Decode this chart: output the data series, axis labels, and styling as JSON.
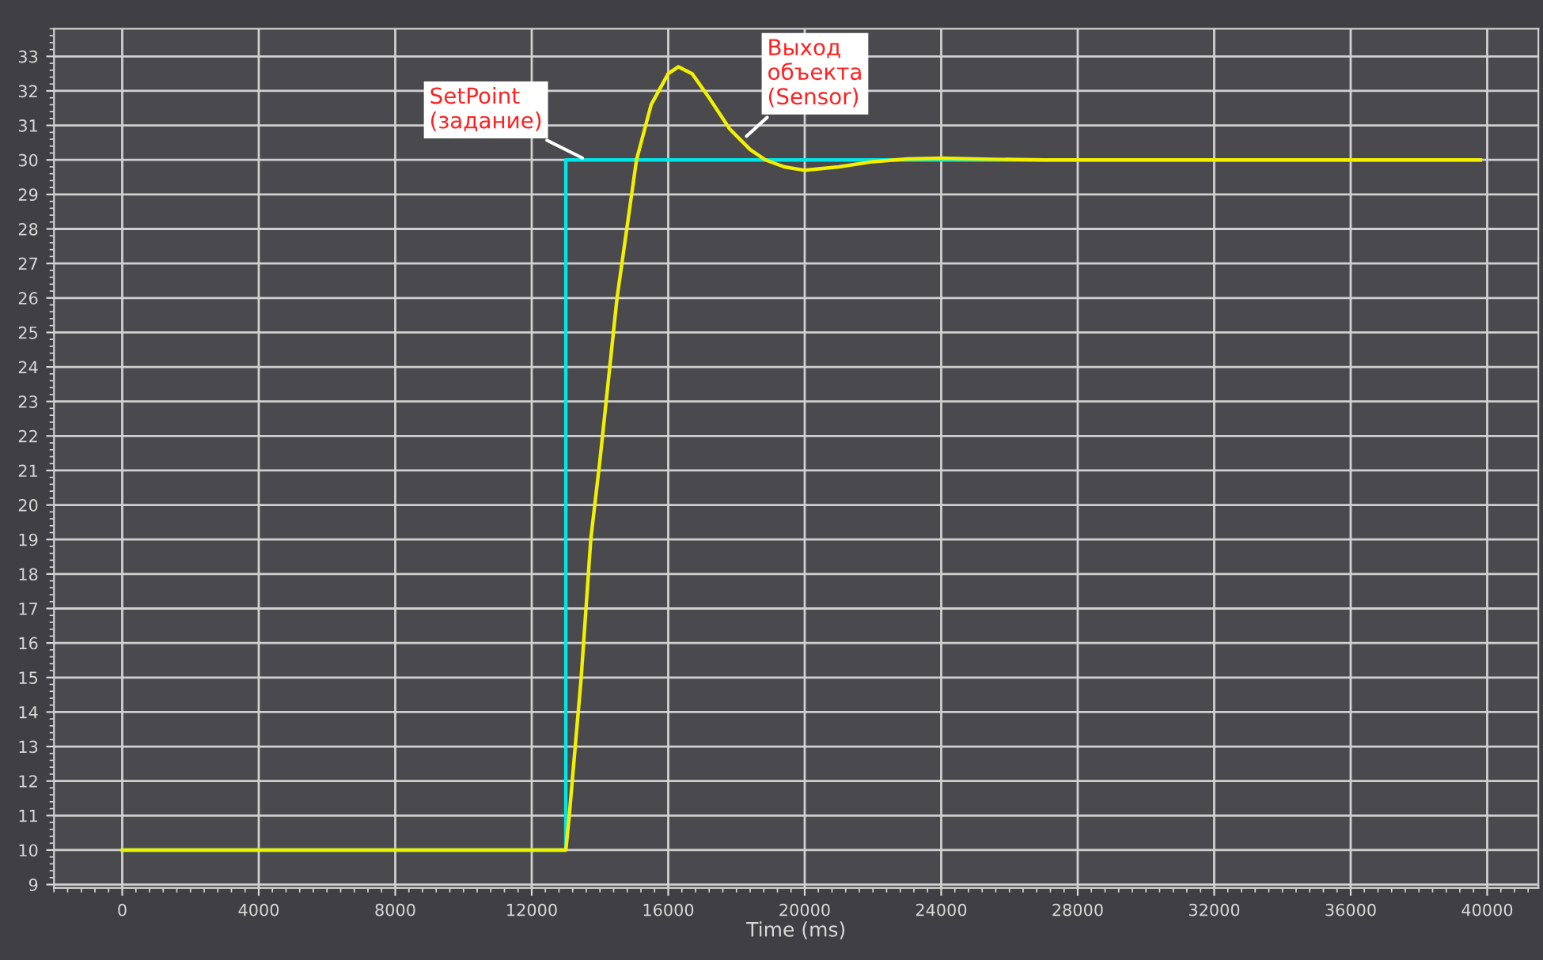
{
  "chart_data": {
    "type": "line",
    "xlabel": "Time (ms)",
    "xlim": [
      -2000,
      41500
    ],
    "ylim": [
      8.9,
      33.8
    ],
    "xticks": [
      0,
      4000,
      8000,
      12000,
      16000,
      20000,
      24000,
      28000,
      32000,
      36000,
      40000
    ],
    "yticks": [
      9,
      10,
      11,
      12,
      13,
      14,
      15,
      16,
      17,
      18,
      19,
      20,
      21,
      22,
      23,
      24,
      25,
      26,
      27,
      28,
      29,
      30,
      31,
      32,
      33
    ],
    "grid": true,
    "marker": "none",
    "line_style": "solid",
    "series": [
      {
        "color": "#00e5e5",
        "type": "step",
        "x": [
          0,
          13000,
          39800
        ],
        "values": [
          10,
          30,
          30
        ]
      },
      {
        "color": "#f0f000",
        "x": [
          0,
          13000,
          13100,
          13450,
          13730,
          14000,
          14500,
          15070,
          15500,
          16000,
          16300,
          16700,
          17200,
          17800,
          18400,
          18850,
          19400,
          20000,
          21000,
          22000,
          23000,
          24000,
          25500,
          27000,
          39800
        ],
        "values": [
          10,
          10,
          11,
          15,
          19,
          21.3,
          26,
          30,
          31.6,
          32.5,
          32.7,
          32.5,
          31.8,
          30.9,
          30.3,
          30,
          29.8,
          29.7,
          29.8,
          29.95,
          30.03,
          30.05,
          30.02,
          30,
          30
        ]
      }
    ],
    "annotations": [
      {
        "text": "SetPoint\n(задание)",
        "x": 13600,
        "y": 30
      },
      {
        "text": "Выход\nобъекта\n(Sensor)",
        "x": 18200,
        "y": 30.6
      }
    ]
  }
}
